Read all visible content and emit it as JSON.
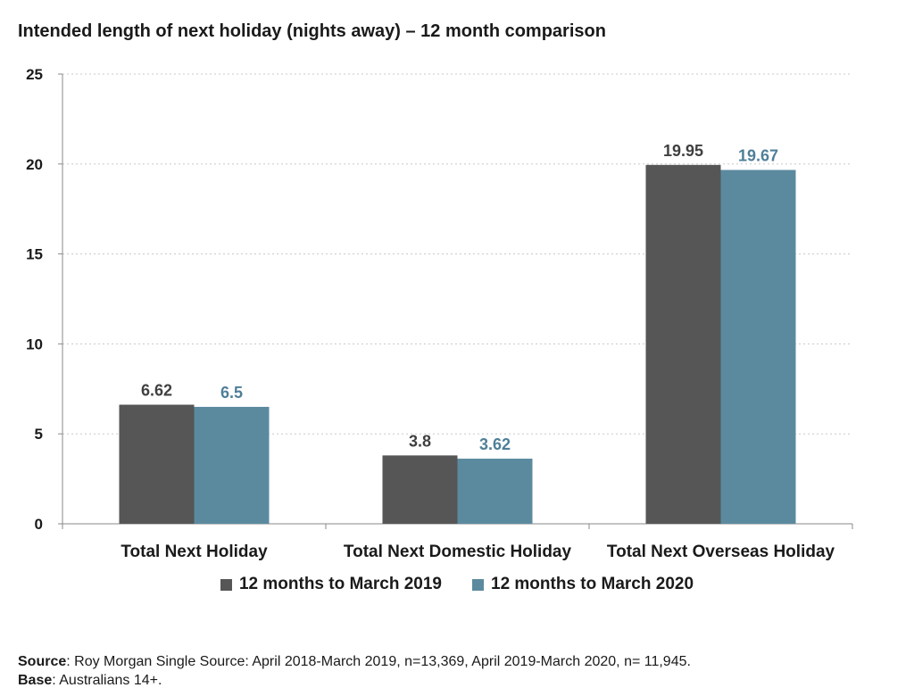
{
  "chart_data": {
    "type": "bar",
    "title": "Intended length of next holiday (nights away) – 12 month comparison",
    "categories": [
      "Total Next Holiday",
      "Total Next Domestic Holiday",
      "Total Next Overseas Holiday"
    ],
    "series": [
      {
        "name": "12 months to March 2019",
        "values": [
          6.62,
          3.8,
          19.95
        ],
        "labels": [
          "6.62",
          "3.8",
          "19.95"
        ],
        "color": "#565656",
        "label_color": "#404040"
      },
      {
        "name": "12 months to March 2020",
        "values": [
          6.5,
          3.62,
          19.67
        ],
        "labels": [
          "6.5",
          "3.62",
          "19.67"
        ],
        "color": "#5b8a9f",
        "label_color": "#4f7f98"
      }
    ],
    "ylim": [
      0,
      25
    ],
    "yticks": [
      "0",
      "5",
      "10",
      "15",
      "20",
      "25"
    ],
    "xlabel": "",
    "ylabel": "",
    "grid": true,
    "legend_position": "bottom"
  },
  "footnote": {
    "source_label": "Source",
    "source_text": ": Roy Morgan Single Source: April 2018-March 2019, n=13,369, April 2019-March 2020, n= 11,945.",
    "base_label": "Base",
    "base_text": ": Australians 14+."
  }
}
